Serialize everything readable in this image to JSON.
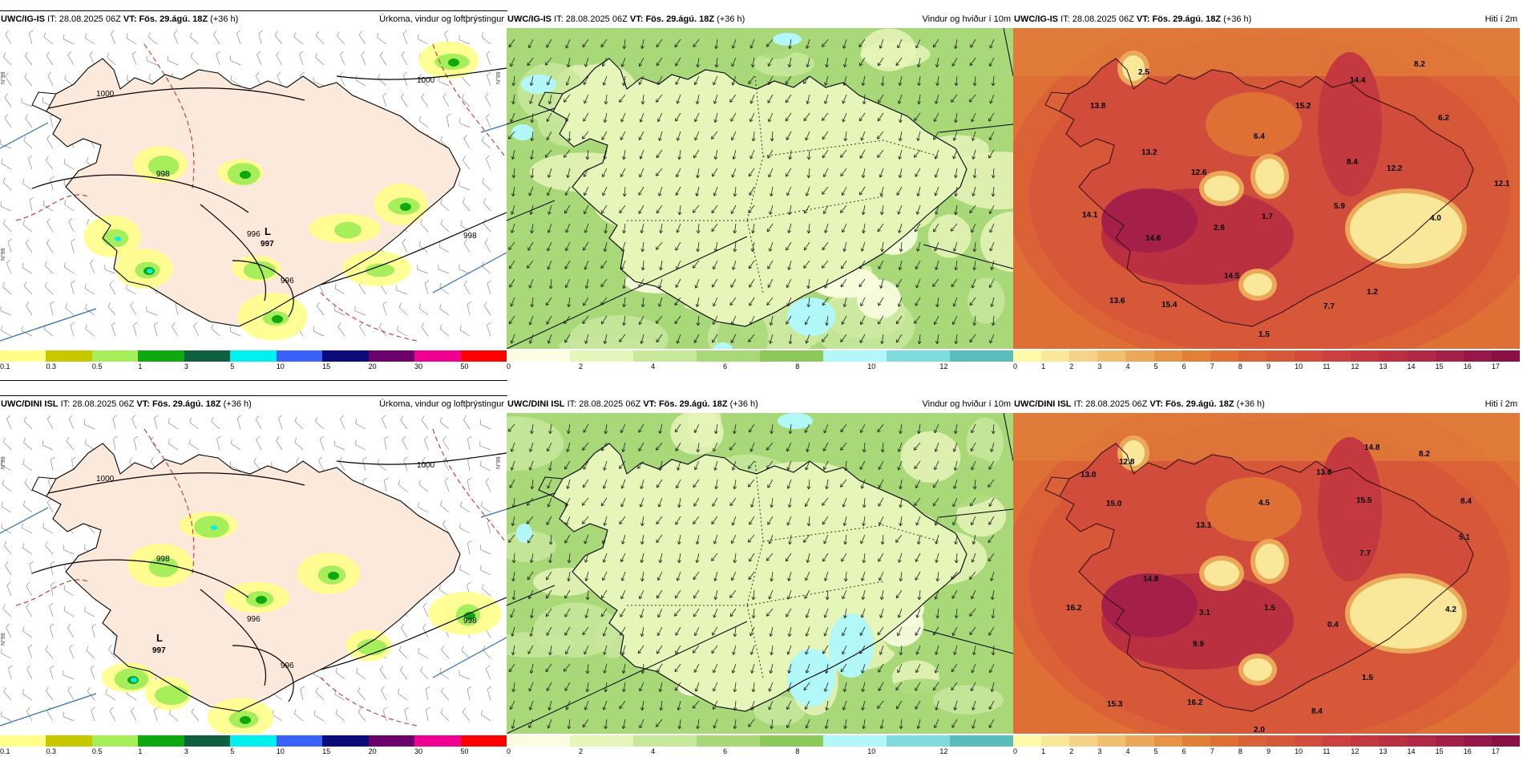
{
  "panels": [
    {
      "id": "tl",
      "model": "UWC/IG-IS",
      "it_label": "IT:",
      "it_value": "28.08.2025 06Z",
      "vt_label": "VT:",
      "vt_value": "Fös. 29.ágú. 18Z",
      "lead": "(+36 h)",
      "field": "Úrkoma, vindur og loftþrýstingur",
      "kind": "precip",
      "low_label": "L",
      "low_value": "997",
      "isobars": [
        "1000",
        "998",
        "996",
        "996",
        "998",
        "1000"
      ],
      "lat_labels": [
        "N°99",
        "N°99",
        "N°99"
      ],
      "colorbar": {
        "colors": [
          "#ffff8a",
          "#c8c800",
          "#a6ee5a",
          "#10a810",
          "#0e6040",
          "#00f0f0",
          "#3a62f8",
          "#0a0a78",
          "#6a006a",
          "#f00090",
          "#ff0000"
        ],
        "ticks": [
          "0.1",
          "0.3",
          "0.5",
          "1",
          "3",
          "5",
          "10",
          "15",
          "20",
          "30",
          "50"
        ]
      }
    },
    {
      "id": "tm",
      "model": "UWC/IG-IS",
      "it_label": "IT:",
      "it_value": "28.08.2025 06Z",
      "vt_label": "VT:",
      "vt_value": "Fös. 29.ágú. 18Z",
      "lead": "(+36 h)",
      "field": "Vindur og hviður í 10m",
      "kind": "wind",
      "colorbar": {
        "colors": [
          "#fafde0",
          "#e6f5b8",
          "#c8e89c",
          "#a8d878",
          "#8cc85a",
          "#b2f8f8",
          "#80dcdc",
          "#5cbcbc"
        ],
        "ticks": [
          "0",
          "2",
          "4",
          "6",
          "8",
          "10",
          "12"
        ]
      }
    },
    {
      "id": "tr",
      "model": "UWC/IG-IS",
      "it_label": "IT:",
      "it_value": "28.08.2025 06Z",
      "vt_label": "VT:",
      "vt_value": "Fös. 29.ágú. 18Z",
      "lead": "(+36 h)",
      "field": "Hiti í 2m",
      "kind": "temp",
      "values": [
        {
          "v": "8.2"
        },
        {
          "v": "14.4"
        },
        {
          "v": "2.5"
        },
        {
          "v": "13.8"
        },
        {
          "v": "15.2"
        },
        {
          "v": "6.2"
        },
        {
          "v": "6.4"
        },
        {
          "v": "13.2"
        },
        {
          "v": "8.4"
        },
        {
          "v": "12.6"
        },
        {
          "v": "12.2"
        },
        {
          "v": "12.1"
        },
        {
          "v": "14.1"
        },
        {
          "v": "1.7"
        },
        {
          "v": "5.9"
        },
        {
          "v": "2.6"
        },
        {
          "v": "4.0"
        },
        {
          "v": "14.6"
        },
        {
          "v": "14.5"
        },
        {
          "v": "13.6"
        },
        {
          "v": "15.4"
        },
        {
          "v": "1.2"
        },
        {
          "v": "7.7"
        },
        {
          "v": "1.5"
        }
      ],
      "colorbar": {
        "colors": [
          "#fffaa8",
          "#fae89a",
          "#f5d48a",
          "#f0c070",
          "#eaa858",
          "#e69448",
          "#e2803a",
          "#de7036",
          "#da6236",
          "#d65838",
          "#d24c3c",
          "#cc4040",
          "#c43840",
          "#ba3040",
          "#b02844",
          "#a42048",
          "#961848",
          "#8a1044"
        ],
        "ticks": [
          "0",
          "1",
          "2",
          "3",
          "4",
          "5",
          "6",
          "7",
          "8",
          "9",
          "10",
          "11",
          "12",
          "13",
          "14",
          "15",
          "16",
          "17"
        ]
      }
    },
    {
      "id": "bl",
      "model": "UWC/DINI ISL",
      "it_label": "IT:",
      "it_value": "28.08.2025 06Z",
      "vt_label": "VT:",
      "vt_value": "Fös. 29.ágú. 18Z",
      "lead": "(+36 h)",
      "field": "Úrkoma, vindur og loftþrýstingur",
      "kind": "precip",
      "low_label": "L",
      "low_value": "997",
      "isobars": [
        "1000",
        "998",
        "996",
        "996",
        "998",
        "1000"
      ],
      "lat_labels": [
        "N°99",
        "N°99",
        "N°99"
      ],
      "colorbar": {
        "colors": [
          "#ffff8a",
          "#c8c800",
          "#a6ee5a",
          "#10a810",
          "#0e6040",
          "#00f0f0",
          "#3a62f8",
          "#0a0a78",
          "#6a006a",
          "#f00090",
          "#ff0000"
        ],
        "ticks": [
          "0.1",
          "0.3",
          "0.5",
          "1",
          "3",
          "5",
          "10",
          "15",
          "20",
          "30",
          "50"
        ]
      }
    },
    {
      "id": "bm",
      "model": "UWC/DINI ISL",
      "it_label": "IT:",
      "it_value": "28.08.2025 06Z",
      "vt_label": "VT:",
      "vt_value": "Fös. 29.ágú. 18Z",
      "lead": "(+36 h)",
      "field": "Vindur og hviður í 10m",
      "kind": "wind",
      "colorbar": {
        "colors": [
          "#fafde0",
          "#e6f5b8",
          "#c8e89c",
          "#a8d878",
          "#8cc85a",
          "#b2f8f8",
          "#80dcdc",
          "#5cbcbc"
        ],
        "ticks": [
          "0",
          "2",
          "4",
          "6",
          "8",
          "10",
          "12"
        ]
      }
    },
    {
      "id": "br",
      "model": "UWC/DINI ISL",
      "it_label": "IT:",
      "it_value": "28.08.2025 06Z",
      "vt_label": "VT:",
      "vt_value": "Fös. 29.ágú. 18Z",
      "lead": "(+36 h)",
      "field": "Hiti í 2m",
      "kind": "temp",
      "values": [
        {
          "v": "14.8"
        },
        {
          "v": "8.2"
        },
        {
          "v": "12.8"
        },
        {
          "v": "13.0"
        },
        {
          "v": "13.6"
        },
        {
          "v": "8.4"
        },
        {
          "v": "15.0"
        },
        {
          "v": "4.5"
        },
        {
          "v": "15.5"
        },
        {
          "v": "5.1"
        },
        {
          "v": "13.1"
        },
        {
          "v": "7.7"
        },
        {
          "v": "14.8"
        },
        {
          "v": "16.2"
        },
        {
          "v": "3.1"
        },
        {
          "v": "1.5"
        },
        {
          "v": "0.4"
        },
        {
          "v": "4.2"
        },
        {
          "v": "9.9"
        },
        {
          "v": "1.5"
        },
        {
          "v": "15.3"
        },
        {
          "v": "16.2"
        },
        {
          "v": "8.4"
        },
        {
          "v": "2.0"
        }
      ],
      "colorbar": {
        "colors": [
          "#fffaa8",
          "#fae89a",
          "#f5d48a",
          "#f0c070",
          "#eaa858",
          "#e69448",
          "#e2803a",
          "#de7036",
          "#da6236",
          "#d65838",
          "#d24c3c",
          "#cc4040",
          "#c43840",
          "#ba3040",
          "#b02844",
          "#a42048",
          "#961848",
          "#8a1044"
        ],
        "ticks": [
          "0",
          "1",
          "2",
          "3",
          "4",
          "5",
          "6",
          "7",
          "8",
          "9",
          "10",
          "11",
          "12",
          "13",
          "14",
          "15",
          "16",
          "17"
        ]
      }
    }
  ]
}
